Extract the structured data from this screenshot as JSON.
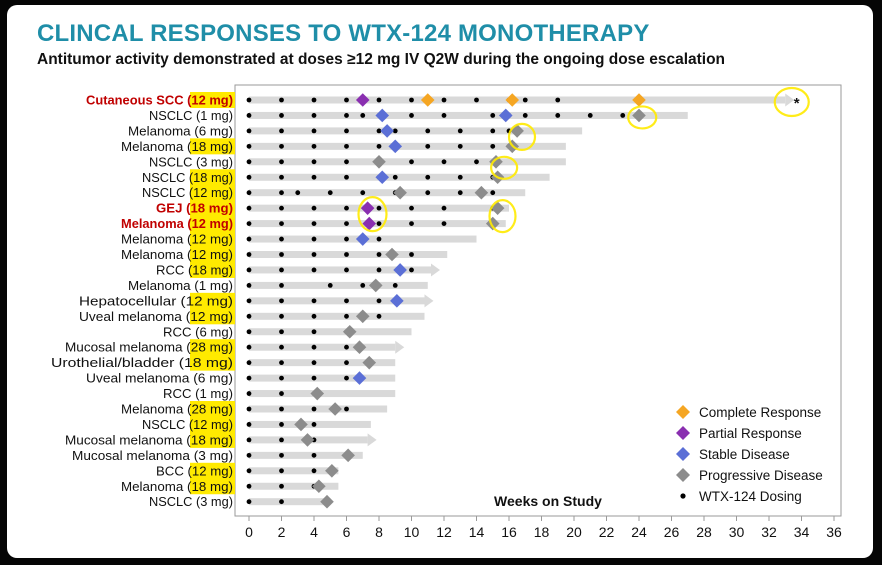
{
  "title": "CLINCAL RESPONSES TO WTX-124 MONOTHERAPY",
  "subtitle": "Antitumor activity demonstrated at doses ≥12 mg IV Q2W during the ongoing dose escalation",
  "colors": {
    "title": "#1f8ea8",
    "CR": "#f5a623",
    "PR": "#8a2fb0",
    "SD": "#5b6fd6",
    "PD": "#8c8c8c",
    "bar": "#d9d9d9",
    "highlight": "#ffea00",
    "red_label": "#c00000"
  },
  "chart_data": {
    "type": "swimmer",
    "xlabel": "Weeks on Study",
    "xlim": [
      -0.8,
      36.8
    ],
    "xticks": [
      0,
      2,
      4,
      6,
      8,
      10,
      12,
      14,
      16,
      18,
      20,
      22,
      24,
      26,
      28,
      30,
      32,
      34,
      36
    ],
    "legend_position": "bottom-right",
    "legend": [
      {
        "key": "CR",
        "label": "Complete Response"
      },
      {
        "key": "PR",
        "label": "Partial Response"
      },
      {
        "key": "SD",
        "label": "Stable Disease"
      },
      {
        "key": "PD",
        "label": "Progressive Disease"
      },
      {
        "key": "DOSE",
        "label": "WTX-124 Dosing"
      }
    ],
    "annotation": "*",
    "patients": [
      {
        "tumor": "Cutaneous SCC",
        "dose": "12 mg",
        "red": true,
        "end": 33,
        "ongoing": true,
        "doses": [
          0,
          2,
          4,
          6,
          8,
          10,
          12,
          14,
          16,
          17,
          19,
          24
        ],
        "responses": [
          [
            "PR",
            7
          ],
          [
            "CR",
            11
          ],
          [
            "CR",
            16.2
          ],
          [
            "CR",
            24
          ]
        ]
      },
      {
        "tumor": "NSCLC",
        "dose": "1 mg",
        "red": false,
        "end": 27,
        "ongoing": false,
        "doses": [
          0,
          2,
          4,
          6,
          7,
          8,
          10,
          12,
          15,
          16,
          17,
          19,
          21,
          23,
          24
        ],
        "responses": [
          [
            "SD",
            8.2
          ],
          [
            "SD",
            15.8
          ],
          [
            "PD",
            24
          ]
        ]
      },
      {
        "tumor": "Melanoma",
        "dose": "6 mg",
        "red": false,
        "end": 20.5,
        "ongoing": false,
        "doses": [
          0,
          2,
          4,
          6,
          8,
          9,
          11,
          13,
          15,
          16
        ],
        "responses": [
          [
            "SD",
            8.5
          ],
          [
            "PD",
            16.5
          ]
        ]
      },
      {
        "tumor": "Melanoma",
        "dose": "18 mg",
        "red": false,
        "end": 19.5,
        "ongoing": false,
        "doses": [
          0,
          2,
          4,
          6,
          8,
          9,
          11,
          13,
          15,
          16
        ],
        "responses": [
          [
            "SD",
            9
          ],
          [
            "PD",
            16.2
          ]
        ]
      },
      {
        "tumor": "NSCLC",
        "dose": "3 mg",
        "red": false,
        "end": 19.5,
        "ongoing": false,
        "doses": [
          0,
          2,
          4,
          6,
          8,
          10,
          12,
          14,
          15
        ],
        "responses": [
          [
            "PD",
            8
          ],
          [
            "PD",
            15.2
          ]
        ]
      },
      {
        "tumor": "NSCLC",
        "dose": "18 mg",
        "red": false,
        "end": 18.5,
        "ongoing": false,
        "doses": [
          0,
          2,
          4,
          6,
          8,
          9,
          11,
          13,
          15
        ],
        "responses": [
          [
            "SD",
            8.2
          ],
          [
            "PD",
            15.3
          ]
        ]
      },
      {
        "tumor": "NSCLC",
        "dose": "12 mg",
        "red": false,
        "end": 17,
        "ongoing": false,
        "doses": [
          0,
          2,
          3,
          5,
          7,
          9,
          11,
          13,
          15
        ],
        "responses": [
          [
            "PD",
            9.3
          ],
          [
            "PD",
            14.3
          ]
        ]
      },
      {
        "tumor": "GEJ",
        "dose": "18 mg",
        "red": true,
        "end": 16,
        "ongoing": false,
        "doses": [
          0,
          2,
          4,
          6,
          8,
          10,
          12,
          15
        ],
        "responses": [
          [
            "PR",
            7.3
          ],
          [
            "PD",
            15.3
          ]
        ]
      },
      {
        "tumor": "Melanoma",
        "dose": "12 mg",
        "red": true,
        "end": 15.8,
        "ongoing": false,
        "doses": [
          0,
          2,
          4,
          6,
          8,
          10,
          12,
          15
        ],
        "responses": [
          [
            "PR",
            7.4
          ],
          [
            "PD",
            15
          ]
        ]
      },
      {
        "tumor": "Melanoma",
        "dose": "12 mg",
        "red": false,
        "end": 14,
        "ongoing": false,
        "doses": [
          0,
          2,
          4,
          6,
          8
        ],
        "responses": [
          [
            "SD",
            7
          ]
        ]
      },
      {
        "tumor": "Melanoma",
        "dose": "12 mg",
        "red": false,
        "end": 12.2,
        "ongoing": false,
        "doses": [
          0,
          2,
          4,
          6,
          8,
          10
        ],
        "responses": [
          [
            "PD",
            8.8
          ]
        ]
      },
      {
        "tumor": "RCC",
        "dose": "18 mg",
        "red": false,
        "end": 11.2,
        "ongoing": true,
        "doses": [
          0,
          2,
          4,
          6,
          8,
          10
        ],
        "responses": [
          [
            "SD",
            9.3
          ]
        ]
      },
      {
        "tumor": "Melanoma",
        "dose": "1 mg",
        "red": false,
        "end": 11,
        "ongoing": false,
        "doses": [
          0,
          2,
          5,
          7,
          9
        ],
        "responses": [
          [
            "PD",
            7.8
          ]
        ]
      },
      {
        "tumor": "Hepatocellular",
        "dose": "12 mg",
        "red": false,
        "end": 10.8,
        "ongoing": true,
        "doses": [
          0,
          2,
          4,
          6,
          8
        ],
        "responses": [
          [
            "SD",
            9.1
          ]
        ]
      },
      {
        "tumor": "Uveal melanoma",
        "dose": "12 mg",
        "red": false,
        "end": 10.8,
        "ongoing": false,
        "doses": [
          0,
          2,
          4,
          6,
          8
        ],
        "responses": [
          [
            "PD",
            7
          ]
        ]
      },
      {
        "tumor": "RCC",
        "dose": "6 mg",
        "red": false,
        "end": 10,
        "ongoing": false,
        "doses": [
          0,
          2,
          4,
          6
        ],
        "responses": [
          [
            "PD",
            6.2
          ]
        ]
      },
      {
        "tumor": "Mucosal melanoma",
        "dose": "28 mg",
        "red": false,
        "end": 9,
        "ongoing": true,
        "doses": [
          0,
          2,
          4,
          6,
          7
        ],
        "responses": [
          [
            "PD",
            6.8
          ]
        ]
      },
      {
        "tumor": "Urothelial/bladder",
        "dose": "18 mg",
        "red": false,
        "end": 9,
        "ongoing": false,
        "doses": [
          0,
          2,
          4,
          6
        ],
        "responses": [
          [
            "PD",
            7.4
          ]
        ]
      },
      {
        "tumor": "Uveal melanoma",
        "dose": "6 mg",
        "red": false,
        "end": 9,
        "ongoing": false,
        "doses": [
          0,
          2,
          4,
          6
        ],
        "responses": [
          [
            "SD",
            6.8
          ]
        ]
      },
      {
        "tumor": "RCC",
        "dose": "1 mg",
        "red": false,
        "end": 9,
        "ongoing": false,
        "doses": [
          0,
          2,
          4
        ],
        "responses": [
          [
            "PD",
            4.2
          ]
        ]
      },
      {
        "tumor": "Melanoma",
        "dose": "28 mg",
        "red": false,
        "end": 8.5,
        "ongoing": false,
        "doses": [
          0,
          2,
          4,
          6
        ],
        "responses": [
          [
            "PD",
            5.3
          ]
        ]
      },
      {
        "tumor": "NSCLC",
        "dose": "12 mg",
        "red": false,
        "end": 7.5,
        "ongoing": false,
        "doses": [
          0,
          2,
          4
        ],
        "responses": [
          [
            "PD",
            3.2
          ]
        ]
      },
      {
        "tumor": "Mucosal melanoma",
        "dose": "18 mg",
        "red": false,
        "end": 7.3,
        "ongoing": true,
        "doses": [
          0,
          2,
          4
        ],
        "responses": [
          [
            "PD",
            3.6
          ]
        ]
      },
      {
        "tumor": "Mucosal melanoma",
        "dose": "3 mg",
        "red": false,
        "end": 7,
        "ongoing": false,
        "doses": [
          0,
          2,
          4
        ],
        "responses": [
          [
            "PD",
            6.1
          ]
        ]
      },
      {
        "tumor": "BCC",
        "dose": "12 mg",
        "red": false,
        "end": 5.5,
        "ongoing": false,
        "doses": [
          0,
          2,
          4
        ],
        "responses": [
          [
            "PD",
            5.1
          ]
        ]
      },
      {
        "tumor": "Melanoma",
        "dose": "18 mg",
        "red": false,
        "end": 5.5,
        "ongoing": false,
        "doses": [
          0,
          2,
          4
        ],
        "responses": [
          [
            "PD",
            4.3
          ]
        ]
      },
      {
        "tumor": "NSCLC",
        "dose": "3 mg",
        "red": false,
        "end": 5,
        "ongoing": false,
        "doses": [
          0,
          2
        ],
        "responses": [
          [
            "PD",
            4.8
          ]
        ]
      }
    ]
  }
}
